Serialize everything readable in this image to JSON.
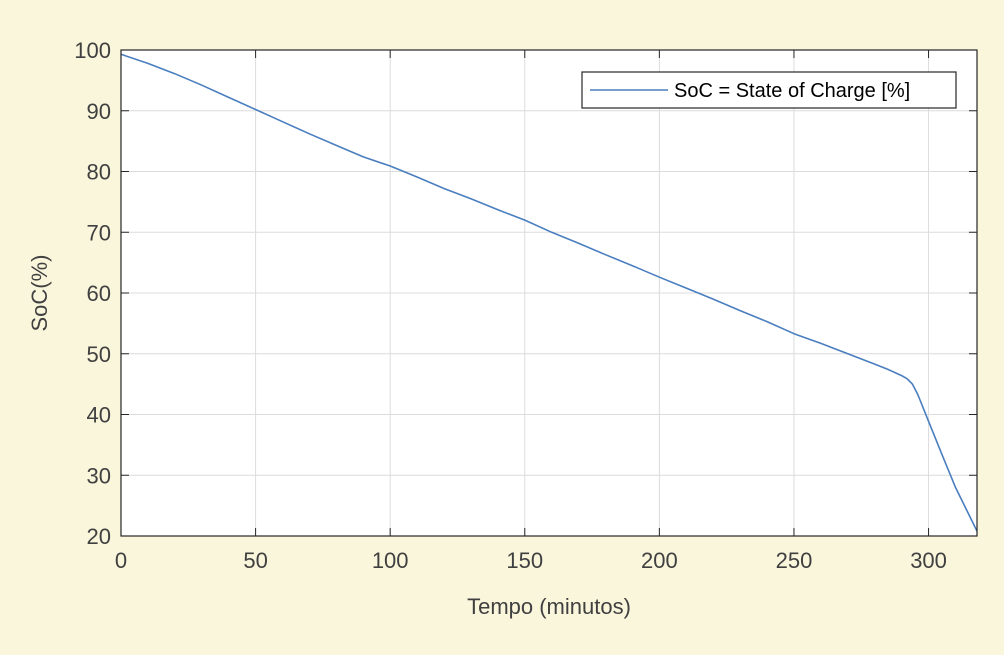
{
  "chart_data": {
    "type": "line",
    "title": "",
    "xlabel": "Tempo (minutos)",
    "ylabel": "SoC(%)",
    "xlim": [
      0,
      318
    ],
    "ylim": [
      20,
      100
    ],
    "xticks": [
      0,
      50,
      100,
      150,
      200,
      250,
      300
    ],
    "yticks": [
      20,
      30,
      40,
      50,
      60,
      70,
      80,
      90,
      100
    ],
    "grid": true,
    "legend_position": "top-right",
    "series": [
      {
        "name": "SoC = State of Charge [%]",
        "color": "#4a7ebf",
        "x": [
          0,
          10,
          20,
          30,
          40,
          50,
          60,
          70,
          80,
          90,
          100,
          110,
          120,
          130,
          140,
          150,
          160,
          170,
          180,
          190,
          200,
          210,
          220,
          230,
          240,
          250,
          260,
          270,
          280,
          285,
          290,
          292,
          294,
          296,
          300,
          305,
          310,
          318
        ],
        "y": [
          99.3,
          97.8,
          96.1,
          94.2,
          92.2,
          90.2,
          88.2,
          86.2,
          84.3,
          82.4,
          80.9,
          79.1,
          77.2,
          75.5,
          73.7,
          72.0,
          70.0,
          68.2,
          66.3,
          64.5,
          62.6,
          60.8,
          59.0,
          57.1,
          55.3,
          53.3,
          51.7,
          50.0,
          48.3,
          47.4,
          46.4,
          45.9,
          45.0,
          43.3,
          38.9,
          33.4,
          28.0,
          20.8
        ]
      }
    ]
  },
  "colors": {
    "page_background": "#faf6dc",
    "plot_background": "#ffffff",
    "grid": "#dcdcdc",
    "axis": "#262626"
  }
}
